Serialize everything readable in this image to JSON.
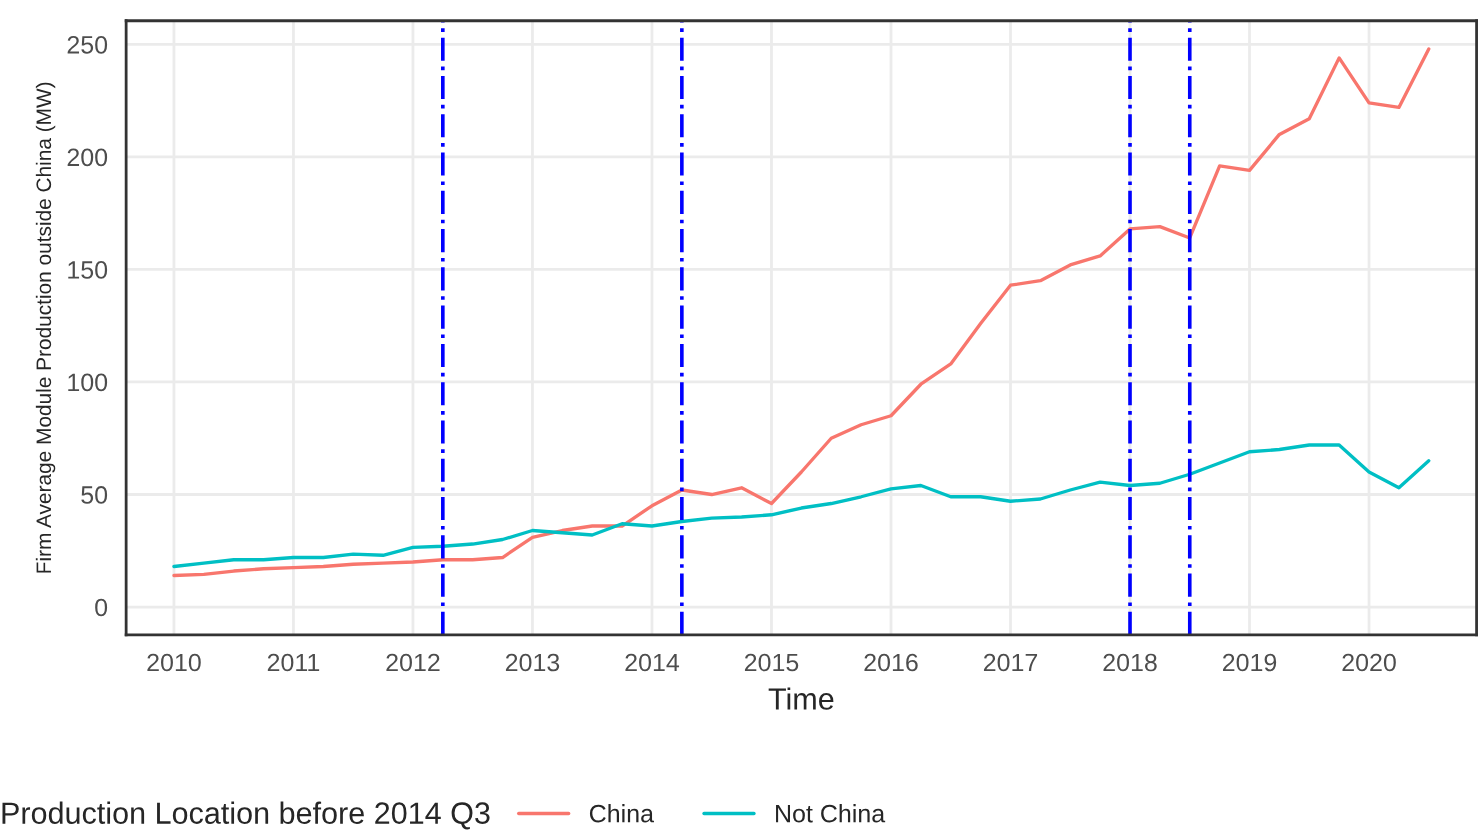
{
  "chart_data": {
    "type": "line",
    "xlabel": "Time",
    "ylabel": "Firm Average Module Production outside China (MW)",
    "legend_title": "Production Location before 2014 Q3",
    "x": [
      2010,
      2010.25,
      2010.5,
      2010.75,
      2011,
      2011.25,
      2011.5,
      2011.75,
      2012,
      2012.25,
      2012.5,
      2012.75,
      2013,
      2013.25,
      2013.5,
      2013.75,
      2014,
      2014.25,
      2014.5,
      2014.75,
      2015,
      2015.25,
      2015.5,
      2015.75,
      2016,
      2016.25,
      2016.5,
      2016.75,
      2017,
      2017.25,
      2017.5,
      2017.75,
      2018,
      2018.25,
      2018.5,
      2018.75,
      2019,
      2019.25,
      2019.5,
      2019.75,
      2020,
      2020.25,
      2020.5
    ],
    "series": [
      {
        "name": "China",
        "color": "#f8766d",
        "values": [
          14,
          14.5,
          16,
          17,
          17.5,
          18,
          19,
          19.5,
          20,
          21,
          21,
          22,
          31,
          34,
          36,
          36,
          45,
          52,
          50,
          53,
          46,
          60,
          75,
          81,
          85,
          99,
          108,
          126,
          143,
          145,
          152,
          156,
          168,
          169,
          164,
          196,
          194,
          210,
          217,
          244,
          224,
          222,
          248
        ]
      },
      {
        "name": "Not China",
        "color": "#00bfc4",
        "values": [
          18,
          19.5,
          21,
          21,
          22,
          22,
          23.5,
          23,
          26.5,
          27,
          28,
          30,
          34,
          33,
          32,
          37,
          36,
          38,
          39.5,
          40,
          41,
          44,
          46,
          49,
          52.5,
          54,
          49,
          49,
          47,
          48,
          52,
          55.5,
          54,
          55,
          59,
          64,
          69,
          70,
          72,
          72,
          60,
          53,
          65
        ]
      }
    ],
    "xlim": [
      2009.6,
      2020.9
    ],
    "xticks": [
      2010,
      2011,
      2012,
      2013,
      2014,
      2015,
      2016,
      2017,
      2018,
      2019,
      2020
    ],
    "ylim": [
      -12.4,
      260.5
    ],
    "yticks": [
      0,
      50,
      100,
      150,
      200,
      250
    ],
    "ref_lines": [
      {
        "axis": "x",
        "value": 2012.25,
        "color": "#0000ff",
        "line_style": "dashdot"
      },
      {
        "axis": "x",
        "value": 2014.25,
        "color": "#0000ff",
        "line_style": "dashdot"
      },
      {
        "axis": "x",
        "value": 2018.0,
        "color": "#0000ff",
        "line_style": "dashdot"
      },
      {
        "axis": "x",
        "value": 2018.5,
        "color": "#0000ff",
        "line_style": "dashdot"
      }
    ],
    "grid": true,
    "legend": "bottom",
    "marker": "none",
    "line_style": "solid"
  }
}
